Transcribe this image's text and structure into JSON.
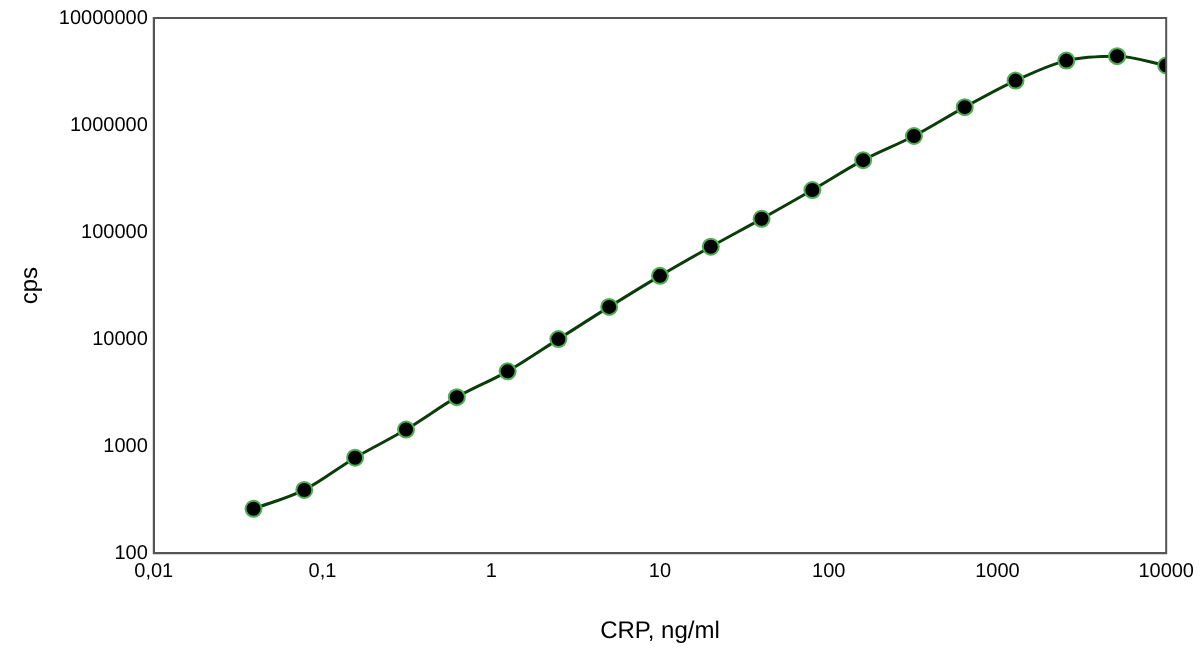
{
  "chart_data": {
    "type": "line",
    "xlabel": "CRP, ng/ml",
    "ylabel": "cps",
    "log": "xy",
    "grid": false,
    "legend": false,
    "marker": "circle",
    "line_style": "solid",
    "xlim": [
      0.01,
      10000
    ],
    "xticks": [
      {
        "value": 0.01,
        "label": "0,01"
      },
      {
        "value": 0.1,
        "label": "0,1"
      },
      1,
      10,
      100,
      1000,
      10000
    ],
    "ylim": [
      100,
      10000000
    ],
    "yticks": [
      100,
      1000,
      10000,
      100000,
      1000000,
      10000000
    ],
    "series": [
      {
        "color": "#0b3d0b",
        "x": [
          0.039,
          0.078,
          0.156,
          0.3125,
          0.625,
          1.25,
          2.5,
          5,
          10,
          20,
          40,
          80,
          160,
          320,
          640,
          1280,
          2560,
          5120,
          10000
        ],
        "values": [
          260,
          390,
          780,
          1430,
          2870,
          5000,
          10000,
          20000,
          39000,
          73000,
          133000,
          247000,
          470000,
          790000,
          1470000,
          2600000,
          4000000,
          4400000,
          3600000
        ]
      }
    ]
  }
}
